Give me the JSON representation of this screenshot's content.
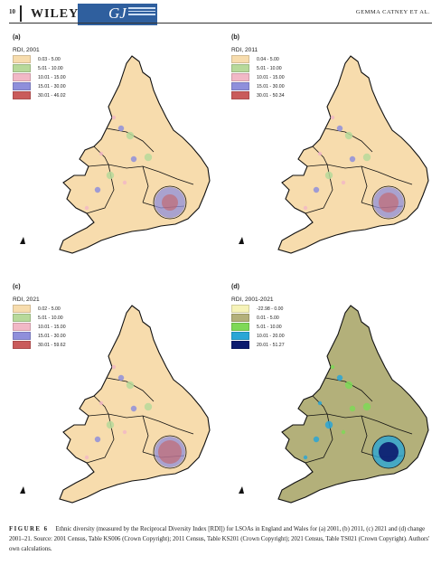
{
  "header": {
    "page_number": "10",
    "publisher": "WILEY",
    "journal_initials": "GJ",
    "running_head": "GEMMA CATNEY ET AL."
  },
  "colors": {
    "land": "#f7dcad",
    "outline": "#111111",
    "low": "#f5e5b5",
    "green": "#b7d99a",
    "pink": "#f2b8c6",
    "blue": "#8f8fdb",
    "red": "#c95b5b",
    "change_base": "#b3b07a"
  },
  "panels": [
    {
      "label": "(a)",
      "legend_title": "RDI, 2001",
      "legend": [
        {
          "text": "0.03 - 5.00",
          "color": "#f7dcad"
        },
        {
          "text": "5.01 - 10.00",
          "color": "#b7d99a"
        },
        {
          "text": "10.01 - 15.00",
          "color": "#f2b8c6"
        },
        {
          "text": "15.01 - 30.00",
          "color": "#8f8fdb"
        },
        {
          "text": "30.01 - 46.02",
          "color": "#c95b5b"
        }
      ]
    },
    {
      "label": "(b)",
      "legend_title": "RDI, 2011",
      "legend": [
        {
          "text": "0.04 - 5.00",
          "color": "#f7dcad"
        },
        {
          "text": "5.01 - 10.00",
          "color": "#b7d99a"
        },
        {
          "text": "10.01 - 15.00",
          "color": "#f2b8c6"
        },
        {
          "text": "15.01 - 30.00",
          "color": "#8f8fdb"
        },
        {
          "text": "30.01 - 50.34",
          "color": "#c95b5b"
        }
      ]
    },
    {
      "label": "(c)",
      "legend_title": "RDI, 2021",
      "legend": [
        {
          "text": "0.02 - 5.00",
          "color": "#f7dcad"
        },
        {
          "text": "5.01 - 10.00",
          "color": "#b7d99a"
        },
        {
          "text": "10.01 - 15.00",
          "color": "#f2b8c6"
        },
        {
          "text": "15.01 - 30.00",
          "color": "#8f8fdb"
        },
        {
          "text": "30.01 - 59.62",
          "color": "#c95b5b"
        }
      ]
    },
    {
      "label": "(d)",
      "legend_title": "RDI, 2001-2021",
      "legend": [
        {
          "text": "-22.98 - 0.00",
          "color": "#f6f3b8"
        },
        {
          "text": "0.01 - 5.00",
          "color": "#b3b07a"
        },
        {
          "text": "5.01 - 10.00",
          "color": "#7ed957"
        },
        {
          "text": "10.01 - 20.00",
          "color": "#2aa6d6"
        },
        {
          "text": "20.01 - 51.27",
          "color": "#0b1a6e"
        }
      ]
    }
  ],
  "caption": {
    "label": "FIGURE 6",
    "text": "Ethnic diversity (measured by the Reciprocal Diversity Index [RDI]) for LSOAs in England and Wales for (a) 2001, (b) 2011, (c) 2021 and (d) change 2001–21. Source: 2001 Census, Table KS006 (Crown Copyright); 2011 Census, Table KS201 (Crown Copyright); 2021 Census, Table TS021 (Crown Copyright). Authors' own calculations."
  }
}
